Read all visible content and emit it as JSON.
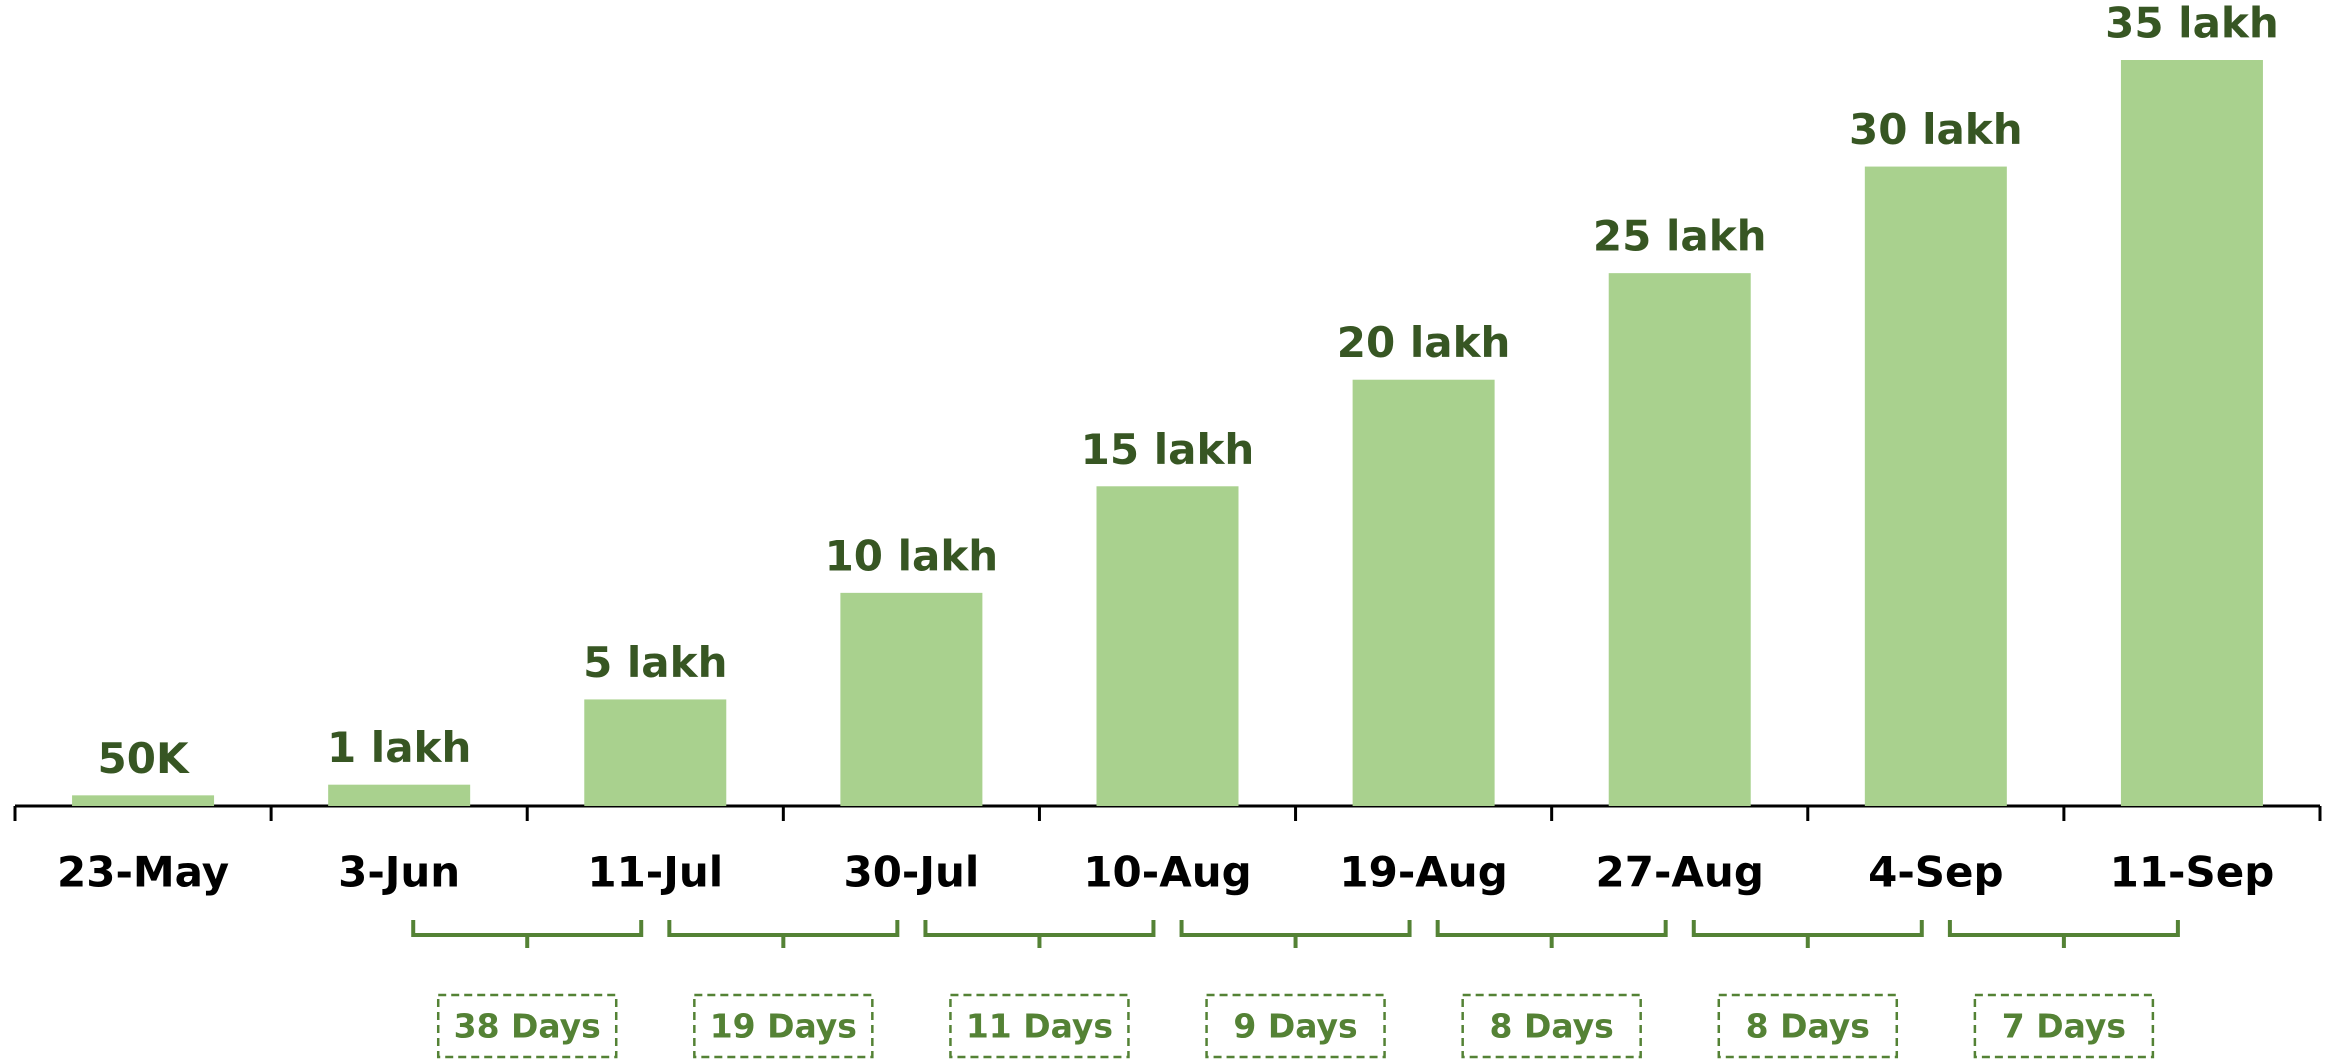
{
  "chart_data": {
    "type": "bar",
    "categories": [
      "23-May",
      "3-Jun",
      "11-Jul",
      "30-Jul",
      "10-Aug",
      "19-Aug",
      "27-Aug",
      "4-Sep",
      "11-Sep"
    ],
    "values": [
      50000,
      100000,
      500000,
      1000000,
      1500000,
      2000000,
      2500000,
      3000000,
      3500000
    ],
    "value_labels": [
      "50K",
      "1 lakh",
      "5 lakh",
      "10 lakh",
      "15 lakh",
      "20 lakh",
      "25 lakh",
      "30 lakh",
      "35 lakh"
    ],
    "color": "#a9d18e",
    "intervals": [
      "38 Days",
      "19 Days",
      "11 Days",
      "9 Days",
      "8 Days",
      "8 Days",
      "7 Days"
    ]
  }
}
